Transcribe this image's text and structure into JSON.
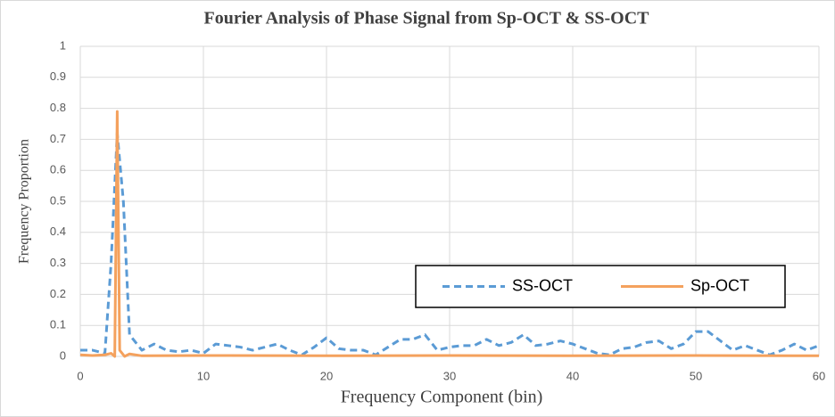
{
  "chart_data": {
    "type": "line",
    "title": "Fourier Analysis of Phase Signal from Sp-OCT & SS-OCT",
    "x_label": "Frequency Component (bin)",
    "y_label": "Frequency Proportion",
    "xlim": [
      0,
      60
    ],
    "xticks": [
      0,
      10,
      20,
      30,
      40,
      50,
      60
    ],
    "ylim": [
      0,
      1
    ],
    "yticks": [
      0,
      0.1,
      0.2,
      0.3,
      0.4,
      0.5,
      0.6,
      0.7,
      0.8,
      0.9,
      1
    ],
    "grid": true,
    "legend": "lower-right",
    "series": [
      {
        "name": "SS-OCT",
        "color": "#5b9bd5",
        "dashed": true,
        "x": [
          0,
          1,
          2,
          2.5,
          3,
          3.5,
          4,
          5,
          6,
          7,
          8,
          9,
          10,
          11,
          12,
          13,
          14,
          15,
          16,
          17,
          18,
          19,
          20,
          21,
          22,
          23,
          24,
          25,
          26,
          27,
          28,
          29,
          30,
          31,
          32,
          33,
          34,
          35,
          36,
          37,
          38,
          39,
          40,
          41,
          42,
          43,
          44,
          45,
          46,
          47,
          48,
          49,
          50,
          51,
          52,
          53,
          54,
          55,
          56,
          57,
          58,
          59,
          60
        ],
        "values": [
          0.02,
          0.02,
          0.01,
          0.3,
          0.72,
          0.5,
          0.07,
          0.02,
          0.04,
          0.02,
          0.015,
          0.02,
          0.01,
          0.04,
          0.035,
          0.03,
          0.02,
          0.03,
          0.04,
          0.02,
          0.005,
          0.03,
          0.06,
          0.025,
          0.02,
          0.02,
          0.005,
          0.03,
          0.055,
          0.055,
          0.07,
          0.02,
          0.03,
          0.035,
          0.035,
          0.055,
          0.035,
          0.045,
          0.07,
          0.035,
          0.04,
          0.05,
          0.04,
          0.025,
          0.01,
          0.005,
          0.025,
          0.03,
          0.045,
          0.05,
          0.025,
          0.04,
          0.08,
          0.08,
          0.05,
          0.02,
          0.035,
          0.02,
          0.005,
          0.02,
          0.04,
          0.02,
          0.035
        ]
      },
      {
        "name": "Sp-OCT",
        "color": "#f4a15d",
        "dashed": false,
        "x": [
          0,
          1,
          2,
          2.5,
          2.8,
          3,
          3.2,
          3.6,
          4,
          5,
          10,
          20,
          30,
          40,
          50,
          60
        ],
        "values": [
          0.005,
          0.003,
          0.005,
          0.01,
          0,
          0.79,
          0.02,
          0,
          0.008,
          0.002,
          0.003,
          0.002,
          0.003,
          0.002,
          0.003,
          0.002
        ]
      }
    ]
  }
}
